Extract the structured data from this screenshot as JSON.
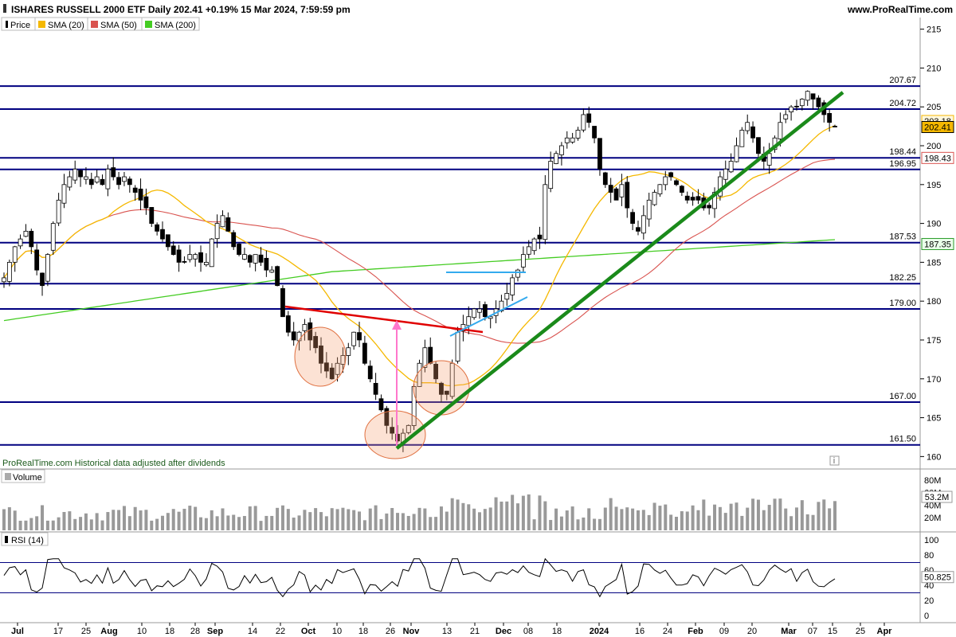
{
  "header": {
    "title": "ISHARES RUSSELL 2000 ETF Daily 202.41 +0.19% 15 Mar 2024, 7:59:59 pm",
    "site": "www.ProRealTime.com"
  },
  "legend": {
    "price": "Price",
    "sma20": "SMA (20)",
    "sma50": "SMA (50)",
    "sma200": "SMA (200)"
  },
  "colors": {
    "sma20": "#f5b800",
    "sma50": "#d9534f",
    "sma200": "#44cc22",
    "level": "#000080",
    "trend_green": "#1a8a1a",
    "trend_red": "#e00000",
    "trend_blue": "#33aaee",
    "arrow_pink": "#ff77cc",
    "circle": "#f5a070"
  },
  "footer_note": "ProRealTime.com  Historical data adjusted after dividends",
  "volume_panel": {
    "label": "Volume",
    "ticks": [
      "80M",
      "60M",
      "40M",
      "20M"
    ],
    "last": "53.2M"
  },
  "rsi_panel": {
    "label": "RSI (14)",
    "ticks": [
      "100",
      "80",
      "60",
      "40",
      "20",
      "0"
    ],
    "last": "50.825"
  },
  "chart_data": {
    "type": "candlestick",
    "title": "ISHARES RUSSELL 2000 ETF Daily",
    "y_ticks": [
      160,
      165,
      170,
      175,
      180,
      185,
      190,
      195,
      200,
      205,
      210,
      215
    ],
    "ylim": [
      158.5,
      216.5
    ],
    "x_ticks": [
      "Jul",
      "17",
      "25",
      "Aug",
      "10",
      "18",
      "28",
      "Sep",
      "14",
      "22",
      "Oct",
      "10",
      "18",
      "26",
      "Nov",
      "13",
      "21",
      "Dec",
      "08",
      "18",
      "2024",
      "16",
      "24",
      "Feb",
      "09",
      "20",
      "Mar",
      "07",
      "15",
      "25",
      "Apr"
    ],
    "levels": [
      207.67,
      204.72,
      198.44,
      196.95,
      187.53,
      182.25,
      179.0,
      167.0,
      161.5
    ],
    "last_price": "202.41",
    "sma20_last": "203.18",
    "sma50_last": "198.43",
    "sma200_last": "187.35",
    "closes": [
      183,
      185,
      187,
      188,
      189,
      187,
      184,
      182,
      186,
      190,
      193,
      195,
      196,
      197,
      196,
      196,
      195,
      196,
      195,
      197,
      196,
      195,
      196,
      195,
      194,
      193,
      192,
      190,
      189,
      188,
      187,
      186,
      185,
      185,
      186,
      186,
      185,
      185,
      188,
      190,
      191,
      189,
      187,
      186,
      186,
      185,
      186,
      185,
      184,
      184,
      182,
      178,
      176,
      175,
      176,
      177,
      175,
      174,
      172,
      171,
      170,
      172,
      173,
      174,
      176,
      175,
      172,
      170,
      168,
      166,
      164,
      163,
      162,
      163,
      164,
      169,
      172,
      174,
      172,
      170,
      168,
      168,
      172,
      176,
      177,
      178,
      179,
      179,
      178,
      178,
      179,
      180,
      181,
      183,
      184,
      186,
      187,
      188,
      188,
      195,
      198,
      199,
      200,
      201,
      201,
      202,
      204,
      203,
      201,
      197,
      195,
      194,
      193,
      195,
      192,
      190,
      189,
      191,
      193,
      194,
      195,
      196,
      196,
      195,
      194,
      193,
      193,
      193,
      192,
      192,
      194,
      196,
      197,
      198,
      200,
      202,
      203,
      201,
      199,
      198,
      199,
      201,
      203,
      204,
      205,
      205,
      206,
      207,
      206,
      205,
      204,
      203,
      202.41
    ],
    "volume_scale_max": 90,
    "rsi_levels": [
      70,
      30
    ]
  }
}
